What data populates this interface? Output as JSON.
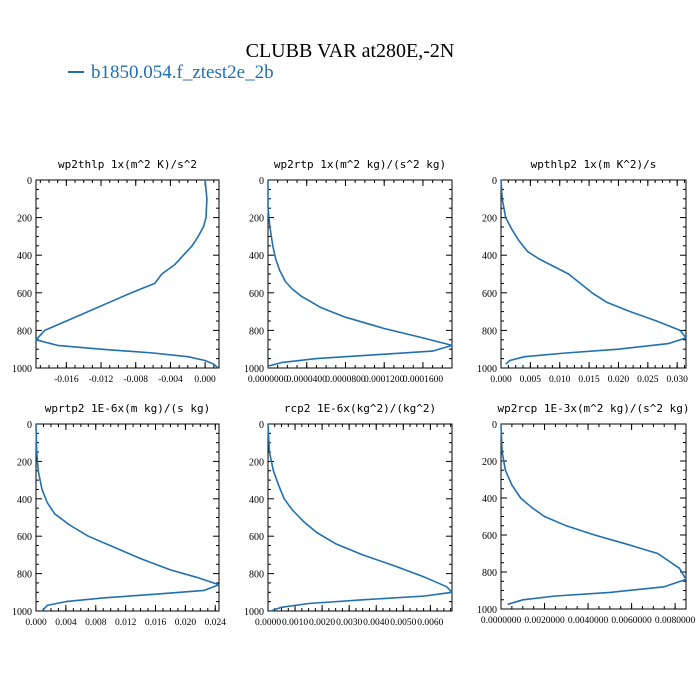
{
  "figure": {
    "title": "CLUBB VAR at280E,-2N",
    "legend_label": "b1850.054.f_ztest2e_2b",
    "line_color": "#2070b0"
  },
  "chart_data": [
    {
      "type": "line",
      "title": "wp2thlp  1x(m^2 K)/s^2",
      "xlim": [
        -0.0195,
        0.0016
      ],
      "ylim": [
        1000,
        0
      ],
      "xticks": [
        -0.016,
        -0.012,
        -0.008,
        -0.004,
        0.0
      ],
      "xtick_labels": [
        "-0.016",
        "-0.012",
        "-0.008",
        "-0.004",
        "0.000"
      ],
      "yticks": [
        0,
        200,
        400,
        600,
        800,
        1000
      ],
      "ytick_labels": [
        "0",
        "200",
        "400",
        "600",
        "800",
        "1000"
      ],
      "series": [
        {
          "x": [
            0.0,
            0.0002,
            0.0001,
            -0.0002,
            -0.0008,
            -0.0015,
            -0.0025,
            -0.0035,
            -0.005,
            -0.0058,
            -0.0085,
            -0.011,
            -0.0135,
            -0.016,
            -0.0185,
            -0.0195,
            -0.017,
            -0.012,
            -0.006,
            -0.002,
            0.0,
            0.001,
            0.0015
          ],
          "y": [
            0,
            100,
            200,
            250,
            300,
            350,
            400,
            450,
            500,
            550,
            600,
            650,
            700,
            750,
            800,
            850,
            880,
            900,
            920,
            940,
            960,
            980,
            1000
          ]
        }
      ]
    },
    {
      "type": "line",
      "title": "wp2rtp  1x(m^2 kg)/(s^2 kg)",
      "xlim": [
        0.0,
        0.00019
      ],
      "ylim": [
        1000,
        0
      ],
      "xticks": [
        0.0,
        4e-05,
        8e-05,
        0.00012,
        0.00016
      ],
      "xtick_labels": [
        "0.0000000",
        "0.0000400",
        "0.0000800",
        "0.0001200",
        "0.0001600"
      ],
      "yticks": [
        0,
        200,
        400,
        600,
        800,
        1000
      ],
      "ytick_labels": [
        "0",
        "200",
        "400",
        "600",
        "800",
        "1000"
      ],
      "series": [
        {
          "x": [
            0.0,
            0.0,
            2e-06,
            5e-06,
            8e-06,
            1.2e-05,
            1.8e-05,
            2.5e-05,
            3.5e-05,
            5.5e-05,
            8e-05,
            0.00012,
            0.00016,
            0.00019,
            0.00017,
            0.00011,
            5e-05,
            1.5e-05,
            0.0,
            0.0
          ],
          "y": [
            0,
            150,
            250,
            350,
            420,
            480,
            540,
            580,
            620,
            680,
            730,
            790,
            840,
            880,
            910,
            930,
            950,
            970,
            990,
            1000
          ]
        }
      ]
    },
    {
      "type": "line",
      "title": "wpthlp2  1x(m K^2)/s",
      "xlim": [
        0.0,
        0.0315
      ],
      "ylim": [
        1000,
        0
      ],
      "xticks": [
        0.0,
        0.005,
        0.01,
        0.015,
        0.02,
        0.025,
        0.03
      ],
      "xtick_labels": [
        "0.000",
        "0.005",
        "0.010",
        "0.015",
        "0.020",
        "0.025",
        "0.030"
      ],
      "yticks": [
        0,
        200,
        400,
        600,
        800,
        1000
      ],
      "ytick_labels": [
        "0",
        "200",
        "400",
        "600",
        "800",
        "1000"
      ],
      "series": [
        {
          "x": [
            0.0,
            0.0002,
            0.0008,
            0.0018,
            0.003,
            0.0045,
            0.0065,
            0.009,
            0.0115,
            0.0135,
            0.0155,
            0.018,
            0.022,
            0.0265,
            0.0305,
            0.0315,
            0.0285,
            0.02,
            0.011,
            0.004,
            0.0015,
            0.0008
          ],
          "y": [
            0,
            100,
            200,
            260,
            320,
            380,
            420,
            460,
            500,
            550,
            600,
            650,
            700,
            750,
            800,
            840,
            870,
            900,
            920,
            940,
            960,
            980
          ]
        }
      ]
    },
    {
      "type": "line",
      "title": "wprtp2  1E-6x(m kg)/(s kg)",
      "xlim": [
        0.0,
        0.0245
      ],
      "ylim": [
        1000,
        0
      ],
      "xticks": [
        0.0,
        0.004,
        0.008,
        0.012,
        0.016,
        0.02,
        0.024
      ],
      "xtick_labels": [
        "0.000",
        "0.004",
        "0.008",
        "0.012",
        "0.016",
        "0.020",
        "0.024"
      ],
      "yticks": [
        0,
        200,
        400,
        600,
        800,
        1000
      ],
      "ytick_labels": [
        "0",
        "200",
        "400",
        "600",
        "800",
        "1000"
      ],
      "series": [
        {
          "x": [
            0.0,
            0.0001,
            0.0003,
            0.0008,
            0.0015,
            0.0025,
            0.0045,
            0.007,
            0.0105,
            0.014,
            0.018,
            0.0215,
            0.0245,
            0.0225,
            0.016,
            0.009,
            0.004,
            0.0015,
            0.0008
          ],
          "y": [
            0,
            150,
            250,
            350,
            420,
            480,
            540,
            600,
            660,
            720,
            780,
            820,
            860,
            890,
            910,
            930,
            950,
            970,
            1000
          ]
        }
      ]
    },
    {
      "type": "line",
      "title": "rcp2  1E-6x(kg^2)/(kg^2)",
      "xlim": [
        0.0,
        0.0068
      ],
      "ylim": [
        1000,
        0
      ],
      "xticks": [
        0.0,
        0.001,
        0.002,
        0.003,
        0.004,
        0.005,
        0.006
      ],
      "xtick_labels": [
        "0.0000",
        "0.0010",
        "0.0020",
        "0.0030",
        "0.0040",
        "0.0050",
        "0.0060"
      ],
      "yticks": [
        0,
        200,
        400,
        600,
        800,
        1000
      ],
      "ytick_labels": [
        "0",
        "200",
        "400",
        "600",
        "800",
        "1000"
      ],
      "series": [
        {
          "x": [
            0.0,
            5e-05,
            0.0002,
            0.0004,
            0.0006,
            0.0009,
            0.0013,
            0.0018,
            0.0025,
            0.0035,
            0.0047,
            0.0058,
            0.0066,
            0.0068,
            0.0058,
            0.0035,
            0.0015,
            0.0005,
            0.0001
          ],
          "y": [
            0,
            150,
            250,
            330,
            400,
            460,
            520,
            580,
            640,
            700,
            760,
            820,
            870,
            900,
            920,
            940,
            960,
            980,
            1000
          ]
        }
      ]
    },
    {
      "type": "line",
      "title": "wp2rcp  1E-3x(m^2 kg)/(s^2 kg)",
      "xlim": [
        0.0,
        0.0085
      ],
      "ylim": [
        1000,
        0
      ],
      "xticks": [
        0.0,
        0.002,
        0.004,
        0.006,
        0.008
      ],
      "xtick_labels": [
        "0.0000000",
        "0.0020000",
        "0.0040000",
        "0.0060000",
        "0.0080000"
      ],
      "yticks": [
        0,
        200,
        400,
        600,
        800,
        1000
      ],
      "ytick_labels": [
        "0",
        "200",
        "400",
        "600",
        "800",
        "1000"
      ],
      "series": [
        {
          "x": [
            0.0,
            5e-05,
            0.0002,
            0.0005,
            0.0009,
            0.0014,
            0.002,
            0.003,
            0.0043,
            0.0058,
            0.0072,
            0.0082,
            0.0085,
            0.0075,
            0.005,
            0.0025,
            0.001,
            0.0003
          ],
          "y": [
            0,
            150,
            250,
            330,
            400,
            450,
            500,
            550,
            600,
            650,
            700,
            780,
            840,
            880,
            910,
            930,
            950,
            975
          ]
        }
      ]
    }
  ]
}
